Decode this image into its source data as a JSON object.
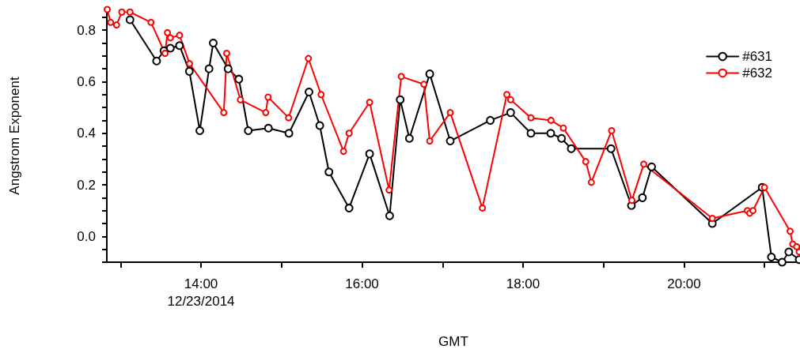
{
  "chart_data": {
    "type": "line",
    "xlabel": "GMT",
    "ylabel": "Angstrom Exponent",
    "legend": "top right",
    "marker": "circle",
    "line_style": "solid",
    "grid": false,
    "xlim": [
      12.83,
      21.44
    ],
    "ylim": [
      -0.1,
      0.88
    ],
    "xticks": [
      {
        "value": 13,
        "label": null
      },
      {
        "value": 14,
        "label": "14:00\n12/23/2014"
      },
      {
        "value": 15,
        "label": null
      },
      {
        "value": 16,
        "label": "16:00"
      },
      {
        "value": 17,
        "label": null
      },
      {
        "value": 18,
        "label": "18:00"
      },
      {
        "value": 19,
        "label": null
      },
      {
        "value": 20,
        "label": "20:00"
      },
      {
        "value": 21,
        "label": null
      }
    ],
    "yticks": [
      {
        "value": -0.1,
        "label": null
      },
      {
        "value": -0.05,
        "label": null
      },
      {
        "value": 0,
        "label": "0.0"
      },
      {
        "value": 0.05,
        "label": null
      },
      {
        "value": 0.1,
        "label": null
      },
      {
        "value": 0.15,
        "label": null
      },
      {
        "value": 0.2,
        "label": "0.2"
      },
      {
        "value": 0.25,
        "label": null
      },
      {
        "value": 0.3,
        "label": null
      },
      {
        "value": 0.35,
        "label": null
      },
      {
        "value": 0.4,
        "label": "0.4"
      },
      {
        "value": 0.45,
        "label": null
      },
      {
        "value": 0.5,
        "label": null
      },
      {
        "value": 0.55,
        "label": null
      },
      {
        "value": 0.6,
        "label": "0.6"
      },
      {
        "value": 0.65,
        "label": null
      },
      {
        "value": 0.7,
        "label": null
      },
      {
        "value": 0.75,
        "label": null
      },
      {
        "value": 0.8,
        "label": "0.8"
      },
      {
        "value": 0.85,
        "label": null
      }
    ],
    "series": [
      {
        "name": "#631",
        "color": "#000000",
        "x": [
          13.118,
          13.448,
          13.54,
          13.619,
          13.733,
          13.855,
          13.985,
          14.1,
          14.152,
          14.336,
          14.47,
          14.587,
          14.837,
          15.092,
          15.341,
          15.475,
          15.589,
          15.839,
          16.094,
          16.343,
          16.474,
          16.588,
          16.841,
          17.096,
          17.593,
          17.846,
          18.098,
          18.344,
          18.478,
          18.599,
          19.093,
          19.346,
          19.483,
          19.597,
          20.351,
          20.97,
          21.085,
          21.218,
          21.301,
          21.43
        ],
        "values": [
          0.84,
          0.68,
          0.72,
          0.73,
          0.74,
          0.64,
          0.41,
          0.65,
          0.75,
          0.65,
          0.61,
          0.41,
          0.42,
          0.4,
          0.56,
          0.43,
          0.25,
          0.11,
          0.32,
          0.08,
          0.53,
          0.38,
          0.63,
          0.37,
          0.45,
          0.48,
          0.4,
          0.4,
          0.38,
          0.34,
          0.34,
          0.12,
          0.15,
          0.27,
          0.05,
          0.19,
          -0.08,
          -0.1,
          -0.06,
          -0.09
        ]
      },
      {
        "name": "#632",
        "color": "#ff0000",
        "x": [
          12.835,
          12.878,
          12.951,
          13.016,
          13.118,
          13.379,
          13.553,
          13.583,
          13.619,
          13.733,
          13.858,
          14.283,
          14.319,
          14.489,
          14.804,
          14.833,
          15.088,
          15.334,
          15.491,
          15.77,
          15.839,
          16.094,
          16.336,
          16.487,
          16.768,
          16.841,
          17.096,
          17.495,
          17.799,
          17.846,
          18.098,
          18.347,
          18.501,
          18.779,
          18.848,
          19.1,
          19.352,
          19.499,
          20.351,
          20.786,
          20.815,
          20.855,
          20.999,
          21.317,
          21.35,
          21.399,
          21.43
        ],
        "values": [
          0.88,
          0.83,
          0.82,
          0.87,
          0.87,
          0.83,
          0.71,
          0.79,
          0.77,
          0.78,
          0.67,
          0.48,
          0.71,
          0.53,
          0.48,
          0.54,
          0.46,
          0.69,
          0.55,
          0.33,
          0.4,
          0.52,
          0.18,
          0.62,
          0.59,
          0.37,
          0.48,
          0.11,
          0.55,
          0.53,
          0.46,
          0.45,
          0.42,
          0.29,
          0.21,
          0.41,
          0.14,
          0.28,
          0.07,
          0.1,
          0.09,
          0.1,
          0.19,
          0.02,
          -0.03,
          -0.04,
          -0.06
        ]
      }
    ]
  }
}
